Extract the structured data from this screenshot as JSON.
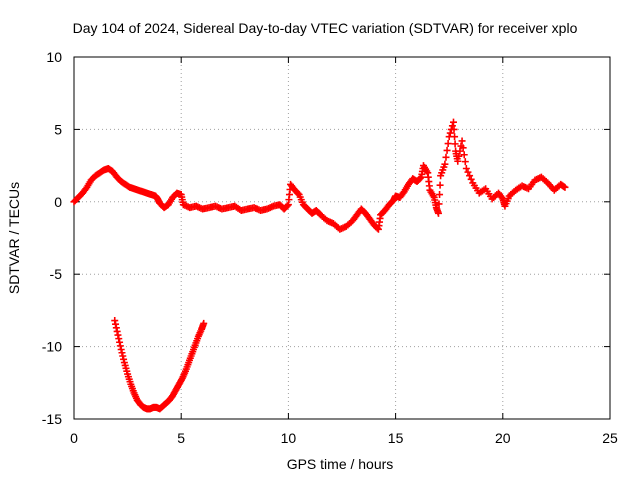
{
  "chart_data": {
    "type": "scatter",
    "title": "Day 104 of 2024, Sidereal Day-to-day VTEC variation (SDTVAR) for receiver xplo",
    "xlabel": "GPS time / hours",
    "ylabel": "SDTVAR / TECUs",
    "xlim": [
      0,
      25
    ],
    "ylim": [
      -15,
      10
    ],
    "xticks": [
      0,
      5,
      10,
      15,
      20,
      25
    ],
    "yticks": [
      -15,
      -10,
      -5,
      0,
      5,
      10
    ],
    "xtick_labels": [
      "0",
      "5",
      "10",
      "15",
      "20",
      "25"
    ],
    "ytick_labels": [
      "-15",
      "-10",
      "-5",
      "0",
      "5",
      "10"
    ],
    "grid": true,
    "marker": "+",
    "color": "#ff0000",
    "series": [
      {
        "name": "SDTVAR main",
        "points": [
          [
            0.0,
            0.0
          ],
          [
            0.2,
            0.3
          ],
          [
            0.4,
            0.6
          ],
          [
            0.6,
            1.0
          ],
          [
            0.8,
            1.5
          ],
          [
            1.0,
            1.8
          ],
          [
            1.2,
            2.0
          ],
          [
            1.4,
            2.2
          ],
          [
            1.6,
            2.3
          ],
          [
            1.8,
            2.1
          ],
          [
            2.0,
            1.7
          ],
          [
            2.2,
            1.4
          ],
          [
            2.4,
            1.2
          ],
          [
            2.6,
            1.0
          ],
          [
            2.8,
            0.9
          ],
          [
            3.0,
            0.8
          ],
          [
            3.2,
            0.7
          ],
          [
            3.4,
            0.6
          ],
          [
            3.6,
            0.5
          ],
          [
            3.8,
            0.4
          ],
          [
            3.9,
            0.2
          ],
          [
            4.0,
            -0.1
          ],
          [
            4.2,
            -0.4
          ],
          [
            4.4,
            -0.2
          ],
          [
            4.6,
            0.3
          ],
          [
            4.8,
            0.6
          ],
          [
            5.0,
            0.5
          ],
          [
            5.1,
            -0.2
          ],
          [
            5.4,
            -0.4
          ],
          [
            5.7,
            -0.3
          ],
          [
            6.0,
            -0.5
          ],
          [
            6.3,
            -0.4
          ],
          [
            6.6,
            -0.3
          ],
          [
            6.9,
            -0.5
          ],
          [
            7.2,
            -0.4
          ],
          [
            7.5,
            -0.3
          ],
          [
            7.8,
            -0.6
          ],
          [
            8.1,
            -0.5
          ],
          [
            8.4,
            -0.4
          ],
          [
            8.7,
            -0.6
          ],
          [
            9.0,
            -0.5
          ],
          [
            9.3,
            -0.3
          ],
          [
            9.6,
            -0.2
          ],
          [
            9.8,
            -0.5
          ],
          [
            10.0,
            -0.2
          ],
          [
            10.1,
            1.2
          ],
          [
            10.3,
            0.8
          ],
          [
            10.5,
            0.5
          ],
          [
            10.7,
            -0.2
          ],
          [
            10.9,
            -0.5
          ],
          [
            11.1,
            -0.8
          ],
          [
            11.3,
            -0.6
          ],
          [
            11.5,
            -0.9
          ],
          [
            11.8,
            -1.3
          ],
          [
            12.1,
            -1.5
          ],
          [
            12.4,
            -1.9
          ],
          [
            12.7,
            -1.7
          ],
          [
            13.0,
            -1.3
          ],
          [
            13.2,
            -0.9
          ],
          [
            13.4,
            -0.5
          ],
          [
            13.6,
            -0.8
          ],
          [
            13.8,
            -1.2
          ],
          [
            14.0,
            -1.6
          ],
          [
            14.2,
            -1.9
          ],
          [
            14.3,
            -0.9
          ],
          [
            14.5,
            -0.6
          ],
          [
            14.7,
            -0.2
          ],
          [
            14.9,
            0.1
          ],
          [
            15.0,
            0.4
          ],
          [
            15.2,
            0.3
          ],
          [
            15.4,
            0.7
          ],
          [
            15.6,
            1.2
          ],
          [
            15.8,
            1.6
          ],
          [
            16.0,
            1.4
          ],
          [
            16.2,
            1.7
          ],
          [
            16.3,
            2.5
          ],
          [
            16.5,
            2.0
          ],
          [
            16.6,
            0.8
          ],
          [
            16.8,
            0.3
          ],
          [
            16.9,
            -0.4
          ],
          [
            17.0,
            -0.8
          ],
          [
            17.1,
            1.8
          ],
          [
            17.3,
            2.6
          ],
          [
            17.5,
            4.5
          ],
          [
            17.7,
            5.5
          ],
          [
            17.8,
            3.5
          ],
          [
            17.9,
            2.8
          ],
          [
            18.1,
            4.2
          ],
          [
            18.3,
            2.3
          ],
          [
            18.6,
            1.3
          ],
          [
            18.9,
            0.6
          ],
          [
            19.2,
            0.9
          ],
          [
            19.5,
            0.2
          ],
          [
            19.8,
            0.6
          ],
          [
            20.0,
            0.2
          ],
          [
            20.1,
            -0.3
          ],
          [
            20.3,
            0.4
          ],
          [
            20.6,
            0.8
          ],
          [
            20.9,
            1.1
          ],
          [
            21.2,
            0.9
          ],
          [
            21.5,
            1.5
          ],
          [
            21.8,
            1.7
          ],
          [
            22.1,
            1.3
          ],
          [
            22.4,
            0.8
          ],
          [
            22.7,
            1.2
          ],
          [
            22.9,
            1.0
          ]
        ]
      },
      {
        "name": "SDTVAR dip",
        "points": [
          [
            1.9,
            -8.2
          ],
          [
            2.05,
            -9.2
          ],
          [
            2.2,
            -10.2
          ],
          [
            2.35,
            -11.1
          ],
          [
            2.5,
            -11.9
          ],
          [
            2.65,
            -12.6
          ],
          [
            2.8,
            -13.2
          ],
          [
            2.95,
            -13.7
          ],
          [
            3.1,
            -14.0
          ],
          [
            3.25,
            -14.2
          ],
          [
            3.4,
            -14.3
          ],
          [
            3.55,
            -14.3
          ],
          [
            3.7,
            -14.2
          ],
          [
            3.85,
            -14.2
          ],
          [
            4.0,
            -14.3
          ],
          [
            4.15,
            -14.1
          ],
          [
            4.3,
            -13.9
          ],
          [
            4.45,
            -13.7
          ],
          [
            4.6,
            -13.4
          ],
          [
            4.75,
            -13.0
          ],
          [
            4.9,
            -12.6
          ],
          [
            5.05,
            -12.2
          ],
          [
            5.2,
            -11.7
          ],
          [
            5.35,
            -11.1
          ],
          [
            5.5,
            -10.5
          ],
          [
            5.65,
            -9.9
          ],
          [
            5.8,
            -9.3
          ],
          [
            5.95,
            -8.8
          ],
          [
            6.05,
            -8.4
          ]
        ]
      }
    ]
  }
}
